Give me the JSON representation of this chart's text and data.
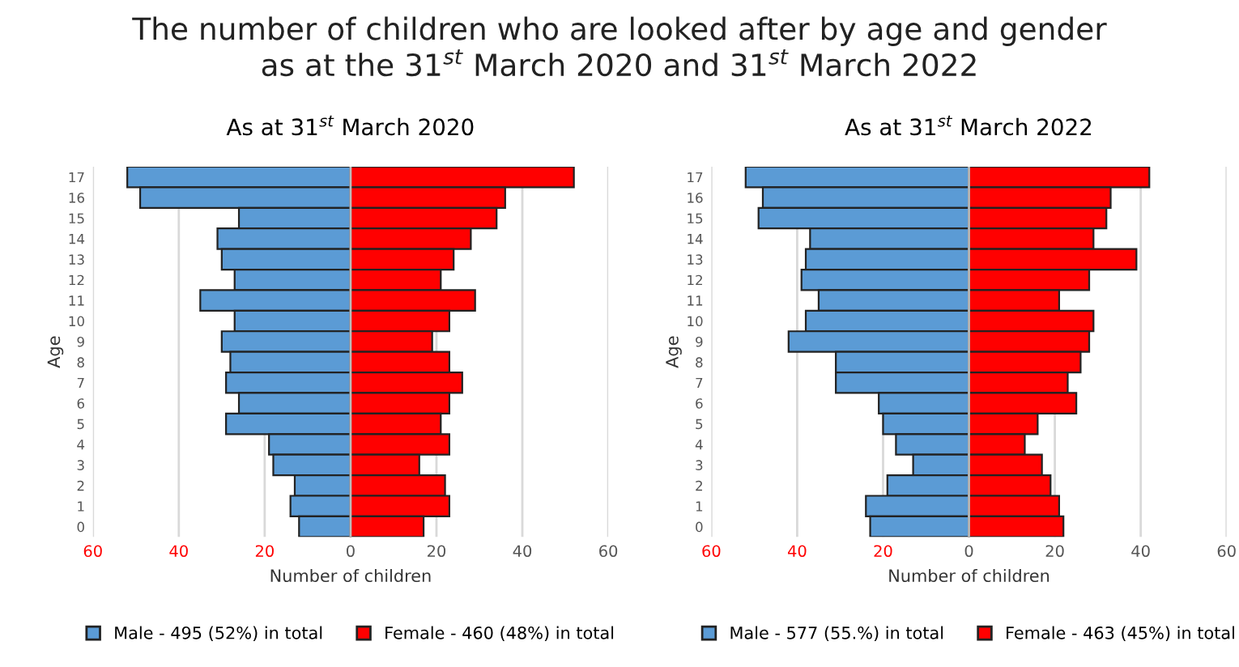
{
  "chart_data": [
    {
      "type": "bar",
      "orientation": "horizontal",
      "stacked": true,
      "title": "As at 31$^{st}$ March 2020",
      "annotations": [
        "The number of children who are looked after by age and gender\nas at the 31$^{st}$ March 2020 and 31$^{st}$ March 2022"
      ],
      "xlabel": "Number of children",
      "ylabel": "Age",
      "categories": [
        "17",
        "16",
        "15",
        "14",
        "13",
        "12",
        "11",
        "10",
        "9",
        "8",
        "7",
        "6",
        "5",
        "4",
        "3",
        "2",
        "1",
        "0"
      ],
      "series": [
        {
          "name": "Male - 495 (52%) in total",
          "color": "#5b9bd5",
          "values": [
            -52,
            -49,
            -26,
            -31,
            -30,
            -27,
            -35,
            -27,
            -30,
            -28,
            -29,
            -26,
            -29,
            -19,
            -18,
            -13,
            -14,
            -12
          ]
        },
        {
          "name": "Female - 460 (48%) in total",
          "color": "#ff0000",
          "values": [
            52,
            36,
            34,
            28,
            24,
            21,
            29,
            23,
            19,
            23,
            26,
            23,
            21,
            23,
            16,
            22,
            23,
            17
          ]
        }
      ],
      "xlim": [
        -60,
        60
      ],
      "xticks": [
        {
          "value": -60,
          "label": "60"
        },
        {
          "value": -40,
          "label": "40"
        },
        {
          "value": -20,
          "label": "20"
        },
        0,
        20,
        40,
        60
      ],
      "grid": "x",
      "legend": "bottom"
    },
    {
      "type": "bar",
      "orientation": "horizontal",
      "stacked": true,
      "title": "As at 31$^{st}$ March 2022",
      "xlabel": "Number of children",
      "ylabel": "Age",
      "categories": [
        "17",
        "16",
        "15",
        "14",
        "13",
        "12",
        "11",
        "10",
        "9",
        "8",
        "7",
        "6",
        "5",
        "4",
        "3",
        "2",
        "1",
        "0"
      ],
      "series": [
        {
          "name": "Male - 577 (55.%) in total",
          "color": "#5b9bd5",
          "values": [
            -52,
            -48,
            -49,
            -37,
            -38,
            -39,
            -35,
            -38,
            -42,
            -31,
            -31,
            -21,
            -20,
            -17,
            -13,
            -19,
            -24,
            -23
          ]
        },
        {
          "name": "Female - 463 (45%) in total",
          "color": "#ff0000",
          "values": [
            42,
            33,
            32,
            29,
            39,
            28,
            21,
            29,
            28,
            26,
            23,
            25,
            16,
            13,
            17,
            19,
            21,
            22
          ]
        }
      ],
      "xlim": [
        -60,
        60
      ],
      "xticks": [
        {
          "value": -60,
          "label": "60"
        },
        {
          "value": -40,
          "label": "40"
        },
        {
          "value": -20,
          "label": "20"
        },
        0,
        20,
        40,
        60
      ],
      "grid": "x",
      "legend": "bottom"
    }
  ]
}
